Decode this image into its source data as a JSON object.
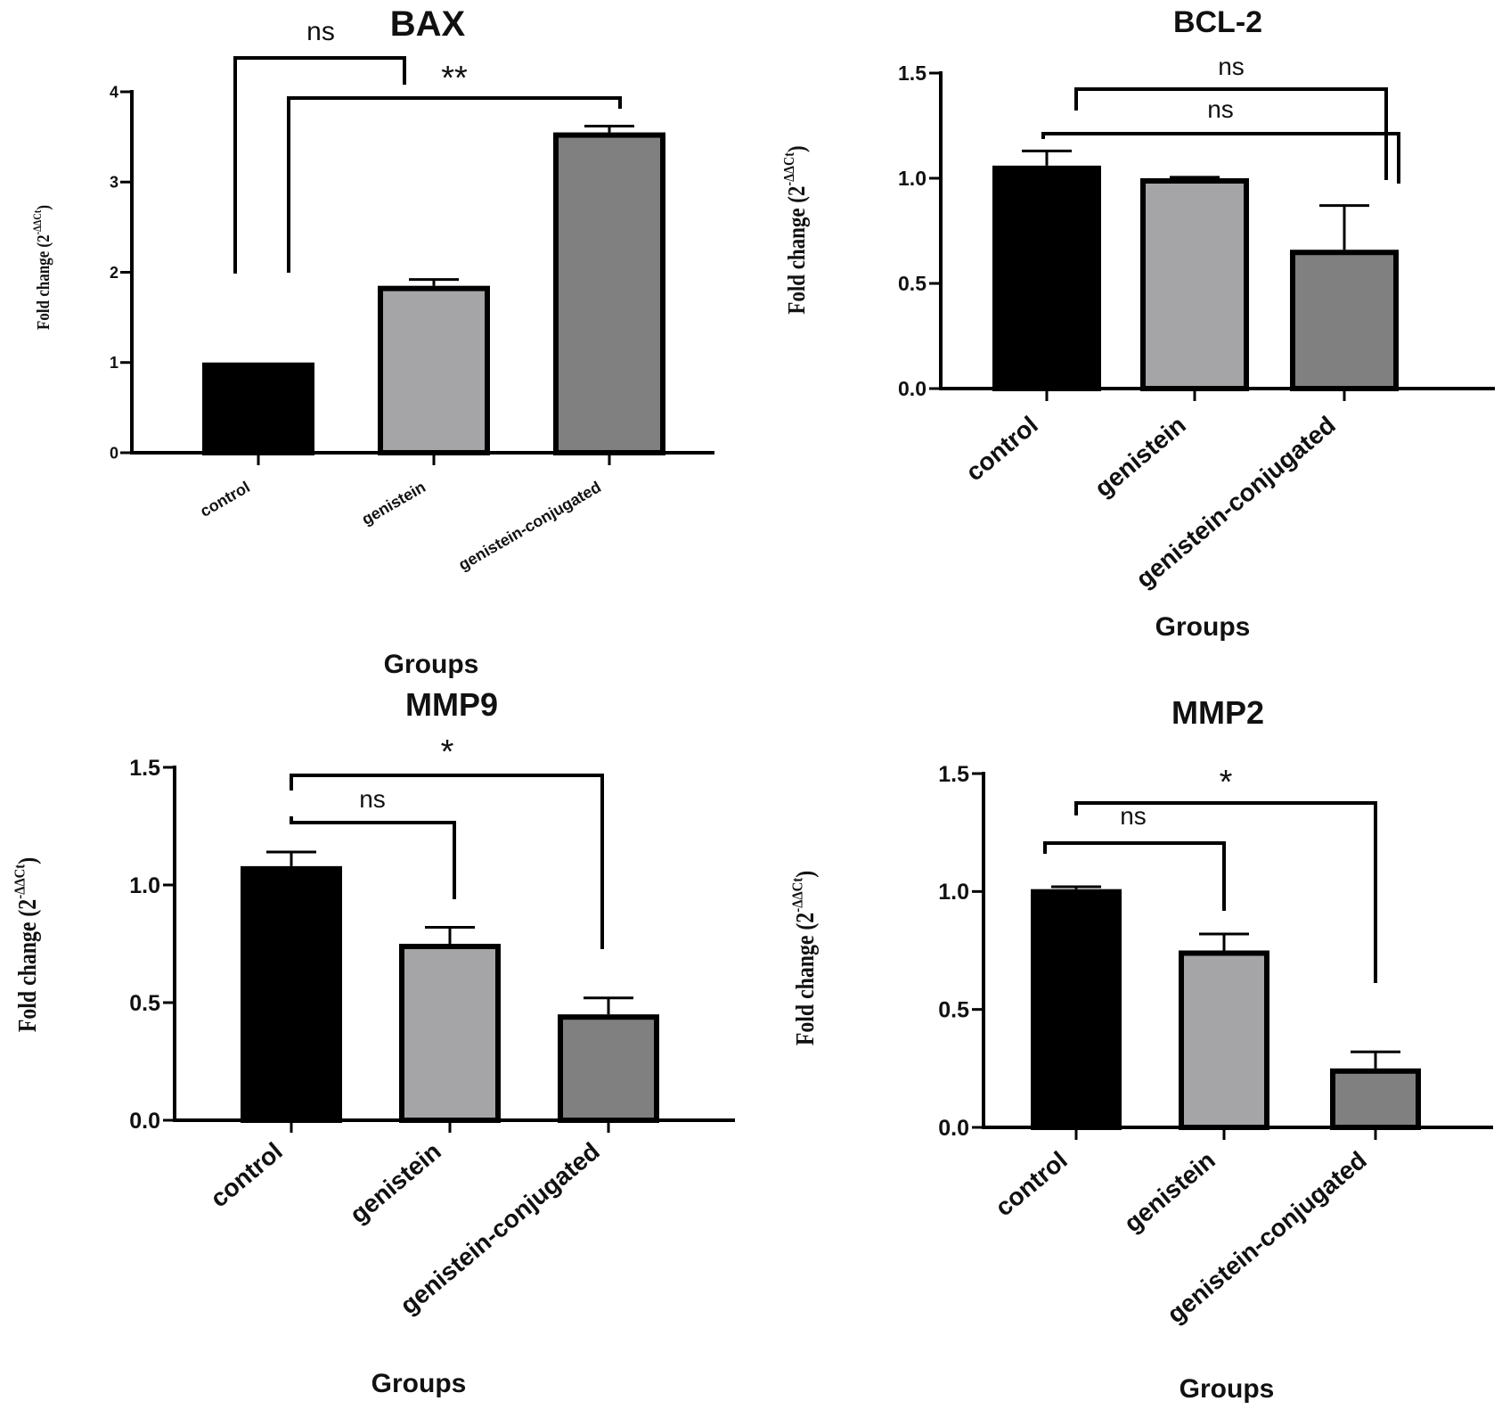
{
  "chart_data": [
    {
      "type": "bar",
      "title": "BAX",
      "xlabel": "Groups",
      "ylabel": "Fold change (2",
      "ylabel_sup": "-ΔΔCt",
      "ylabel_close": ")",
      "categories": [
        "control",
        "genistein",
        "genistein-conjugated"
      ],
      "values": [
        1.0,
        1.85,
        3.55
      ],
      "errors": [
        0,
        0.07,
        0.07
      ],
      "colors": [
        "#000000",
        "#a5a5a8",
        "#808080"
      ],
      "ylim": [
        0,
        4
      ],
      "yticks": [
        "0",
        "1",
        "2",
        "3",
        "4"
      ],
      "grid": false,
      "comparisons": [
        {
          "label": "ns",
          "groups": [
            "control",
            "genistein"
          ]
        },
        {
          "label": "**",
          "groups": [
            "genistein",
            "genistein-conjugated"
          ]
        }
      ]
    },
    {
      "type": "bar",
      "title": "BCL-2",
      "xlabel": "Groups",
      "ylabel": "Fold change (2",
      "ylabel_sup": "-ΔΔCt",
      "ylabel_close": ")",
      "categories": [
        "control",
        "genistein",
        "genistein-conjugated"
      ],
      "values": [
        1.06,
        1.0,
        0.66
      ],
      "errors": [
        0.07,
        0.005,
        0.21
      ],
      "colors": [
        "#000000",
        "#a5a5a8",
        "#808080"
      ],
      "ylim": [
        0,
        1.5
      ],
      "yticks": [
        "0.0",
        "0.5",
        "1.0",
        "1.5"
      ],
      "grid": false,
      "comparisons": [
        {
          "label": "ns",
          "groups": [
            "control",
            "genistein-conjugated"
          ]
        },
        {
          "label": "ns",
          "groups": [
            "control",
            "genistein-conjugated"
          ]
        }
      ]
    },
    {
      "type": "bar",
      "title": "MMP9",
      "xlabel": "Groups",
      "ylabel": "Fold change (2",
      "ylabel_sup": "-ΔΔCt",
      "ylabel_close": ")",
      "categories": [
        "control",
        "genistein",
        "genistein-conjugated"
      ],
      "values": [
        1.08,
        0.75,
        0.45
      ],
      "errors": [
        0.06,
        0.07,
        0.07
      ],
      "colors": [
        "#000000",
        "#a5a5a8",
        "#808080"
      ],
      "ylim": [
        0,
        1.5
      ],
      "yticks": [
        "0.0",
        "0.5",
        "1.0",
        "1.5"
      ],
      "grid": false,
      "comparisons": [
        {
          "label": "*",
          "groups": [
            "control",
            "genistein-conjugated"
          ]
        },
        {
          "label": "ns",
          "groups": [
            "control",
            "genistein"
          ]
        }
      ]
    },
    {
      "type": "bar",
      "title": "MMP2",
      "xlabel": "Groups",
      "ylabel": "Fold change (2",
      "ylabel_sup": "-ΔΔCt",
      "ylabel_close": ")",
      "categories": [
        "control",
        "genistein",
        "genistein-conjugated"
      ],
      "values": [
        1.01,
        0.75,
        0.25
      ],
      "errors": [
        0.01,
        0.07,
        0.07
      ],
      "colors": [
        "#000000",
        "#a5a5a8",
        "#808080"
      ],
      "ylim": [
        0,
        1.5
      ],
      "yticks": [
        "0.0",
        "0.5",
        "1.0",
        "1.5"
      ],
      "grid": false,
      "comparisons": [
        {
          "label": "*",
          "groups": [
            "control",
            "genistein-conjugated"
          ]
        },
        {
          "label": "ns",
          "groups": [
            "control",
            "genistein"
          ]
        }
      ]
    }
  ]
}
